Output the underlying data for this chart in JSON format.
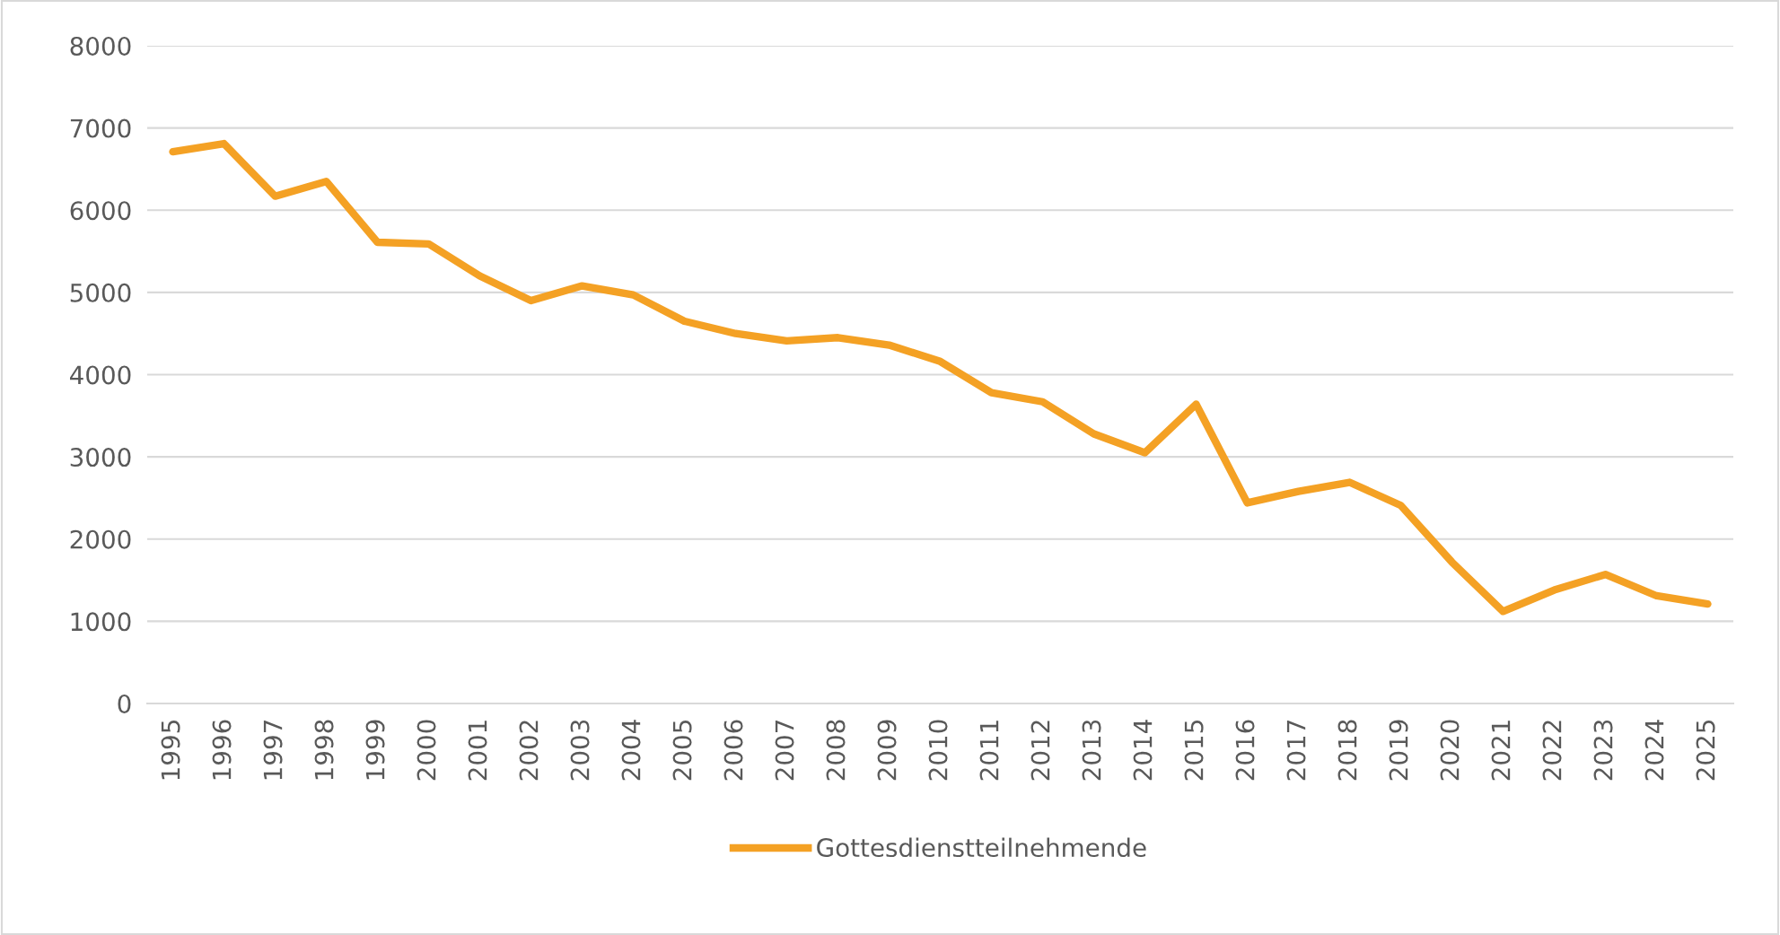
{
  "chart_data": {
    "type": "line",
    "categories": [
      "1995",
      "1996",
      "1997",
      "1998",
      "1999",
      "2000",
      "2001",
      "2002",
      "2003",
      "2004",
      "2005",
      "2006",
      "2007",
      "2008",
      "2009",
      "2010",
      "2011",
      "2012",
      "2013",
      "2014",
      "2015",
      "2016",
      "2017",
      "2018",
      "2019",
      "2020",
      "2021",
      "2022",
      "2023",
      "2024",
      "2025"
    ],
    "series": [
      {
        "name": "Gottesdienstteilnehmende",
        "color": "#f4a124",
        "values": [
          6710,
          6810,
          6170,
          6350,
          5610,
          5590,
          5200,
          4900,
          5080,
          4970,
          4650,
          4500,
          4410,
          4450,
          4360,
          4160,
          3780,
          3670,
          3280,
          3050,
          3640,
          2440,
          2580,
          2690,
          2410,
          1720,
          1120,
          1380,
          1570,
          1310,
          1210
        ]
      }
    ],
    "ylim": [
      0,
      8000
    ],
    "yticks": [
      0,
      1000,
      2000,
      3000,
      4000,
      5000,
      6000,
      7000,
      8000
    ],
    "grid": "y",
    "legend": "bottom",
    "marker": "none",
    "line_style": "solid"
  }
}
